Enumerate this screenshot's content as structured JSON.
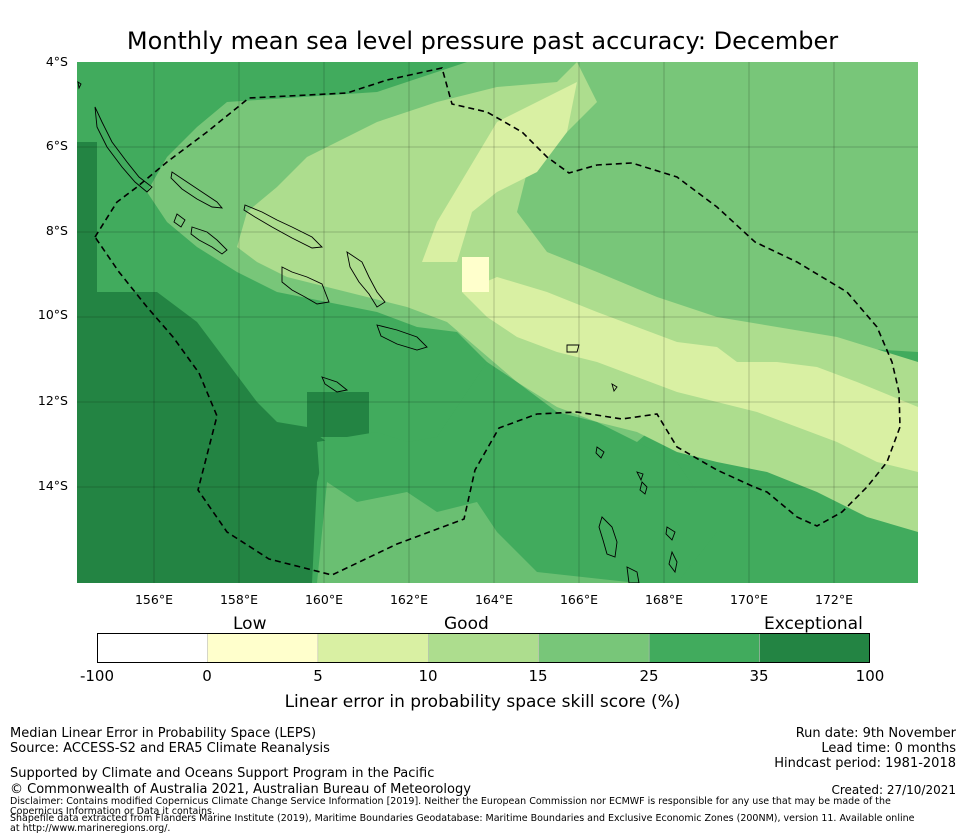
{
  "title": "Monthly mean sea level pressure past accuracy: December",
  "map": {
    "lat_labels": [
      "4°S",
      "6°S",
      "8°S",
      "10°S",
      "12°S",
      "14°S"
    ],
    "lon_labels": [
      "156°E",
      "158°E",
      "160°E",
      "162°E",
      "164°E",
      "166°E",
      "168°E",
      "170°E",
      "172°E"
    ],
    "lon_range": [
      154.2,
      174.0
    ],
    "lat_range": [
      -4.0,
      -16.3
    ]
  },
  "colorbar": {
    "categories": [
      "Low",
      "Good",
      "Exceptional"
    ],
    "ticks": [
      "-100",
      "0",
      "5",
      "10",
      "15",
      "25",
      "35",
      "100"
    ],
    "colors": [
      "#ffffff",
      "#ffffcc",
      "#d9f0a3",
      "#addd8e",
      "#78c679",
      "#41ab5d",
      "#238443"
    ],
    "label": "Linear error in probability space skill score (%)"
  },
  "footer": {
    "left1": "Median Linear Error in Probability Space (LEPS)",
    "left2": "Source: ACCESS-S2 and ERA5 Climate Reanalysis",
    "support": "Supported by Climate and Oceans Support Program in the Pacific",
    "copyright": "© Commonwealth of Australia 2021, Australian Bureau of Meteorology",
    "disclaimer": "Disclaimer: Contains modified Copernicus Climate Change Service Information [2019]. Neither the European Commission nor ECMWF is responsible for any use that may be made of the Copernicus Information or Data it contains.",
    "shapefile": "Shapefile data extracted from Flanders Marine Institute (2019), Maritime Boundaries Geodatabase: Maritime Boundaries and Exclusive Economic Zones (200NM), version 11. Available online at http://www.marineregions.org/.",
    "run_date": "Run date: 9th November",
    "lead_time": "Lead time: 0 months",
    "hindcast": "Hindcast period: 1981-2018",
    "created": "Created: 27/10/2021"
  }
}
